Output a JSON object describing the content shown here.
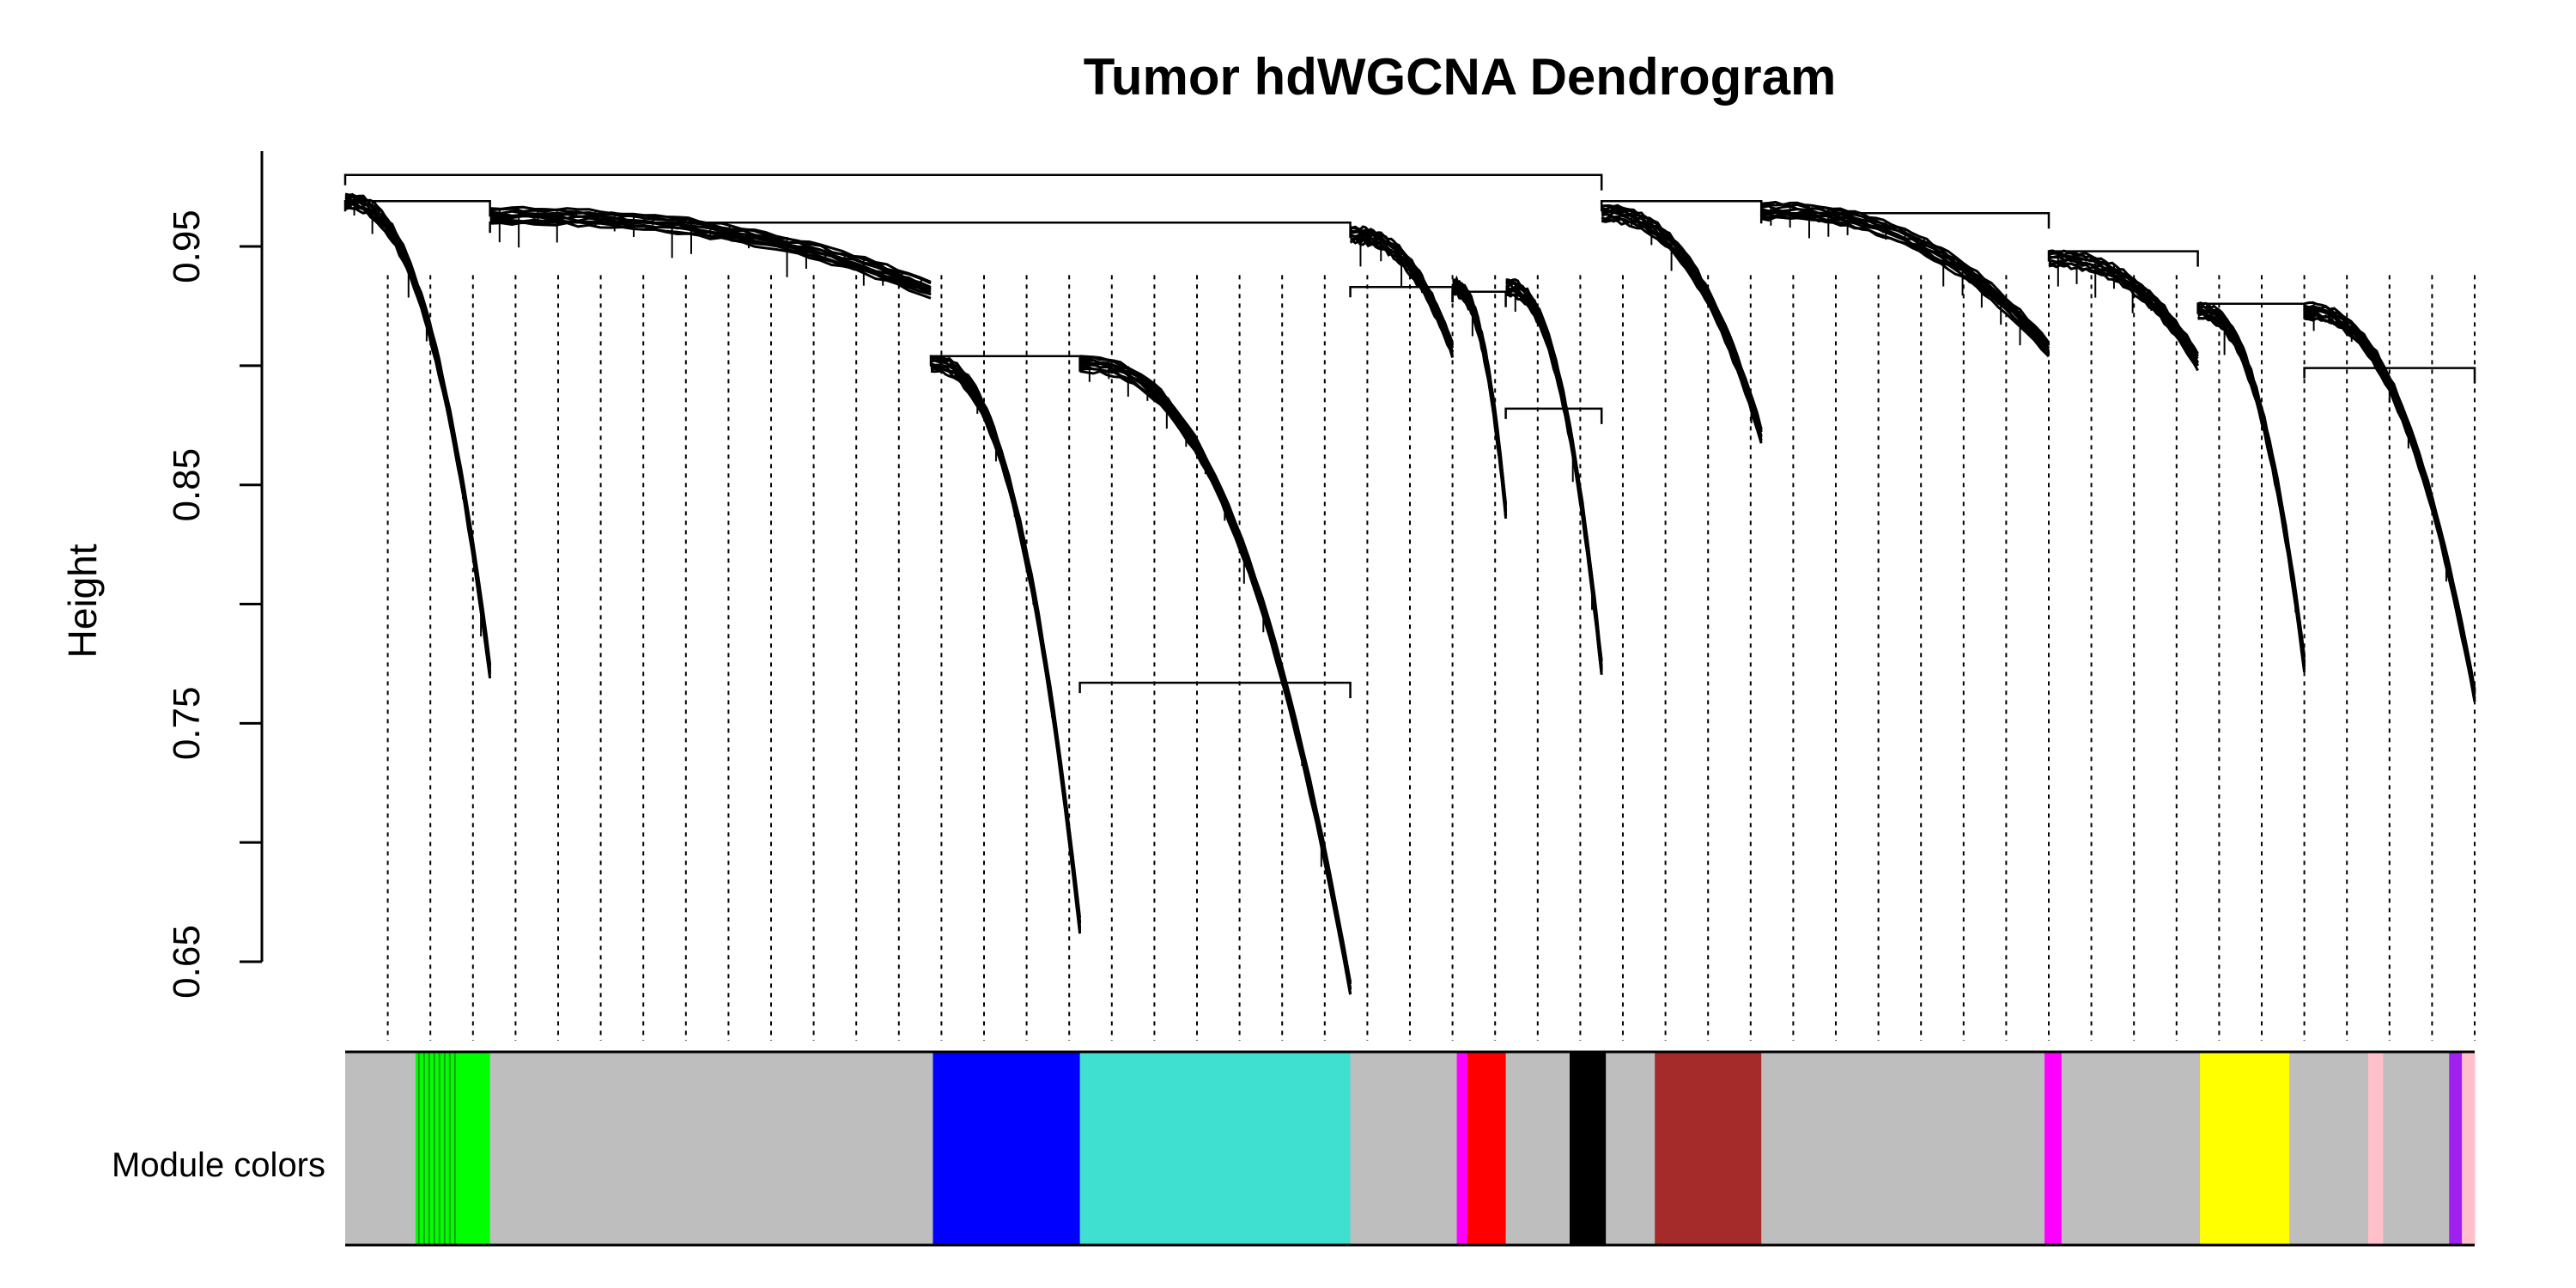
{
  "chart_data": {
    "type": "dendrogram",
    "title": "Tumor hdWGCNA Dendrogram",
    "ylabel": "Height",
    "xlabel": "",
    "ylim": [
      0.65,
      0.99
    ],
    "yticks": [
      0.65,
      0.75,
      0.85,
      0.95
    ],
    "grid": false,
    "leaf_range": [
      0,
      1000
    ],
    "subtrees": [
      {
        "module": "green",
        "from": 0,
        "to": 68,
        "bottom": 0.775,
        "top": 0.972
      },
      {
        "module": "grey",
        "from": 68,
        "to": 275,
        "bottom": 0.935,
        "top": 0.966
      },
      {
        "module": "blue",
        "from": 275,
        "to": 345,
        "bottom": 0.668,
        "top": 0.904
      },
      {
        "module": "turquoise",
        "from": 345,
        "to": 472,
        "bottom": 0.642,
        "top": 0.904
      },
      {
        "module": "grey",
        "from": 472,
        "to": 520,
        "bottom": 0.91,
        "top": 0.958
      },
      {
        "module": "red",
        "from": 520,
        "to": 545,
        "bottom": 0.842,
        "top": 0.936
      },
      {
        "module": "black",
        "from": 545,
        "to": 590,
        "bottom": 0.776,
        "top": 0.936
      },
      {
        "module": "brown",
        "from": 590,
        "to": 665,
        "bottom": 0.874,
        "top": 0.967
      },
      {
        "module": "grey",
        "from": 665,
        "to": 800,
        "bottom": 0.91,
        "top": 0.968
      },
      {
        "module": "grey",
        "from": 800,
        "to": 870,
        "bottom": 0.905,
        "top": 0.948
      },
      {
        "module": "yellow",
        "from": 870,
        "to": 920,
        "bottom": 0.778,
        "top": 0.926
      },
      {
        "module": "grey",
        "from": 920,
        "to": 1000,
        "bottom": 0.765,
        "top": 0.926
      }
    ],
    "merges": [
      {
        "left": 0,
        "right": 68,
        "height": 0.969
      },
      {
        "left": 68,
        "right": 472,
        "height": 0.96
      },
      {
        "left": 275,
        "right": 345,
        "height": 0.904
      },
      {
        "left": 472,
        "right": 520,
        "height": 0.933
      },
      {
        "left": 520,
        "right": 545,
        "height": 0.931
      },
      {
        "left": 545,
        "right": 590,
        "height": 0.882
      },
      {
        "left": 345,
        "right": 472,
        "height": 0.767
      },
      {
        "left": 0,
        "right": 590,
        "height": 0.98
      },
      {
        "left": 590,
        "right": 665,
        "height": 0.969
      },
      {
        "left": 665,
        "right": 800,
        "height": 0.964
      },
      {
        "left": 800,
        "right": 870,
        "height": 0.948
      },
      {
        "left": 870,
        "right": 920,
        "height": 0.926
      },
      {
        "left": 920,
        "right": 1000,
        "height": 0.899
      }
    ],
    "dashed_leaves": [
      20,
      40,
      60,
      80,
      100,
      120,
      140,
      160,
      180,
      200,
      220,
      240,
      260,
      280,
      300,
      320,
      340,
      360,
      380,
      400,
      420,
      440,
      460,
      480,
      500,
      520,
      540,
      560,
      580,
      600,
      620,
      640,
      660,
      680,
      700,
      720,
      740,
      760,
      780,
      800,
      820,
      840,
      860,
      880,
      900,
      920,
      940,
      960,
      980,
      1000
    ],
    "module_label": "Module colors",
    "module_colors": [
      {
        "color": "#bebebe",
        "from": 0,
        "to": 33
      },
      {
        "color": "#00ff00",
        "from": 33,
        "to": 68
      },
      {
        "color": "#bebebe",
        "from": 68,
        "to": 276
      },
      {
        "color": "#0000ff",
        "from": 276,
        "to": 345
      },
      {
        "color": "#40e0d0",
        "from": 345,
        "to": 472
      },
      {
        "color": "#bebebe",
        "from": 472,
        "to": 522
      },
      {
        "color": "#ff00ff",
        "from": 522,
        "to": 527
      },
      {
        "color": "#ff0000",
        "from": 527,
        "to": 545
      },
      {
        "color": "#bebebe",
        "from": 545,
        "to": 575
      },
      {
        "color": "#000000",
        "from": 575,
        "to": 592
      },
      {
        "color": "#bebebe",
        "from": 592,
        "to": 615
      },
      {
        "color": "#a52a2a",
        "from": 615,
        "to": 665
      },
      {
        "color": "#bebebe",
        "from": 665,
        "to": 798
      },
      {
        "color": "#ff00ff",
        "from": 798,
        "to": 806
      },
      {
        "color": "#bebebe",
        "from": 806,
        "to": 871
      },
      {
        "color": "#ffff00",
        "from": 871,
        "to": 913
      },
      {
        "color": "#bebebe",
        "from": 913,
        "to": 950
      },
      {
        "color": "#ffc0cb",
        "from": 950,
        "to": 957
      },
      {
        "color": "#bebebe",
        "from": 957,
        "to": 988
      },
      {
        "color": "#a020f0",
        "from": 988,
        "to": 994
      },
      {
        "color": "#ffc0cb",
        "from": 994,
        "to": 1000
      }
    ],
    "accent_colors": {
      "line": "#000000",
      "background": "#ffffff"
    }
  }
}
